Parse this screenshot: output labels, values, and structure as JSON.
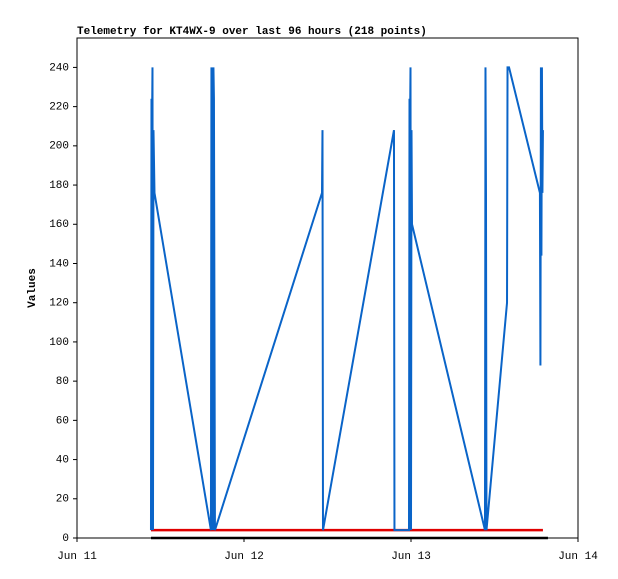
{
  "chart_data": {
    "type": "line",
    "title": "Telemetry for KT4WX-9 over last 96 hours (218 points)",
    "y_label": "Values",
    "xlim": [
      0,
      3
    ],
    "xticks": [
      {
        "value": 0,
        "label": "Jun 11"
      },
      {
        "value": 1,
        "label": "Jun 12"
      },
      {
        "value": 2,
        "label": "Jun 13"
      },
      {
        "value": 3,
        "label": "Jun 14"
      }
    ],
    "ylim": [
      0,
      255
    ],
    "yticks": [
      0,
      20,
      40,
      60,
      80,
      100,
      120,
      140,
      160,
      180,
      200,
      220,
      240
    ],
    "series": [
      {
        "color": "#000000",
        "x": [
          0.443,
          2.82
        ],
        "values": [
          0,
          0
        ]
      },
      {
        "color": "#e00000",
        "x": [
          0.443,
          2.79
        ],
        "values": [
          4,
          4
        ]
      },
      {
        "color": "#0a64c8",
        "x": [
          0.443,
          0.446,
          0.449,
          0.452,
          0.455,
          0.458,
          0.461,
          0.464,
          0.802,
          0.805,
          0.808,
          0.814,
          0.817,
          0.82,
          0.826,
          1.467,
          1.47,
          1.473,
          1.898,
          1.901,
          1.988,
          1.991,
          1.994,
          1.997,
          2.0,
          2.003,
          2.006,
          2.443,
          2.446,
          2.449,
          2.452,
          2.575,
          2.578,
          2.581,
          2.587,
          2.772,
          2.775,
          2.778,
          2.781,
          2.784,
          2.787,
          2.79
        ],
        "values": [
          4,
          224,
          208,
          240,
          4,
          208,
          192,
          176,
          4,
          240,
          80,
          4,
          240,
          224,
          4,
          176,
          208,
          4,
          208,
          4,
          4,
          224,
          208,
          240,
          4,
          208,
          160,
          4,
          240,
          176,
          4,
          120,
          240,
          240,
          240,
          176,
          88,
          240,
          144,
          240,
          176,
          208
        ]
      }
    ]
  }
}
